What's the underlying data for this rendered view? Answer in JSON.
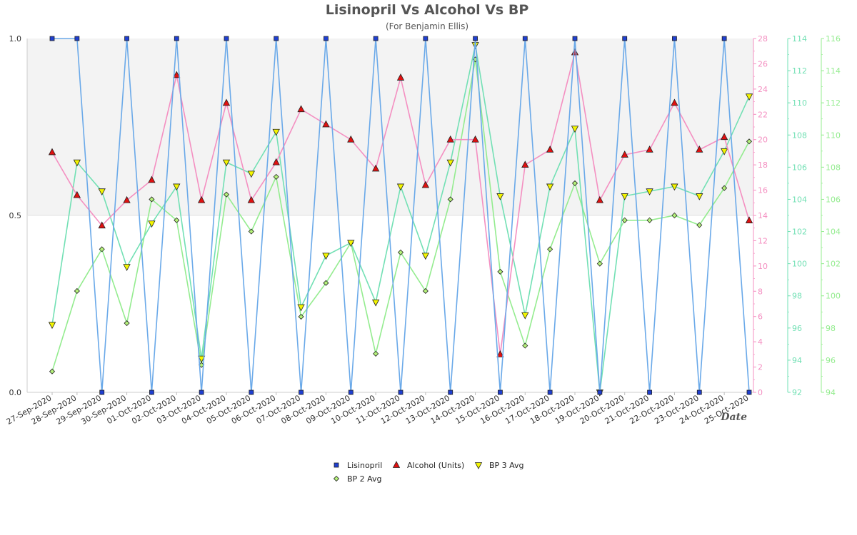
{
  "colors": {
    "lisinopril": "#6aa9e9",
    "alcohol": "#f48fc1",
    "bp3": "#72e0b4",
    "bp2": "#94ec8f",
    "plot_band": "#f3f3f3"
  },
  "chart_data": {
    "type": "line",
    "title": "Lisinopril Vs Alcohol Vs BP",
    "subtitle": "(For Benjamin Ellis)",
    "xlabel": "Date",
    "grid": false,
    "legend_position": "bottom-center",
    "categories": [
      "27-Sep-2020",
      "28-Sep-2020",
      "29-Sep-2020",
      "30-Sep-2020",
      "01-Oct-2020",
      "02-Oct-2020",
      "03-Oct-2020",
      "04-Oct-2020",
      "05-Oct-2020",
      "06-Oct-2020",
      "07-Oct-2020",
      "08-Oct-2020",
      "09-Oct-2020",
      "10-Oct-2020",
      "11-Oct-2020",
      "12-Oct-2020",
      "13-Oct-2020",
      "14-Oct-2020",
      "15-Oct-2020",
      "16-Oct-2020",
      "17-Oct-2020",
      "18-Oct-2020",
      "19-Oct-2020",
      "20-Oct-2020",
      "21-Oct-2020",
      "22-Oct-2020",
      "23-Oct-2020",
      "24-Oct-2020",
      "25-Oct-2020"
    ],
    "axes": {
      "left": {
        "ylim": [
          0,
          1
        ],
        "ticks": [
          "0.0",
          "0.5",
          "1.0"
        ]
      },
      "alcohol": {
        "ylim": [
          0,
          28
        ],
        "ticks": [
          "0",
          "2",
          "4",
          "6",
          "8",
          "10",
          "12",
          "14",
          "16",
          "18",
          "20",
          "22",
          "24",
          "26",
          "28"
        ]
      },
      "bp3": {
        "ylim": [
          92,
          114
        ],
        "ticks": [
          "92",
          "94",
          "96",
          "98",
          "100",
          "102",
          "104",
          "106",
          "108",
          "110",
          "112",
          "114"
        ]
      },
      "bp2": {
        "ylim": [
          94,
          116
        ],
        "ticks": [
          "94",
          "96",
          "98",
          "100",
          "102",
          "104",
          "106",
          "108",
          "110",
          "112",
          "114",
          "116"
        ]
      }
    },
    "series": [
      {
        "name": "Lisinopril",
        "axis": "left",
        "marker": "square",
        "values": [
          1,
          1,
          0,
          1,
          0,
          1,
          0,
          1,
          0,
          1,
          0,
          1,
          0,
          1,
          0,
          1,
          0,
          1,
          0,
          1,
          0,
          1,
          0,
          1,
          0,
          1,
          0,
          1,
          0
        ]
      },
      {
        "name": "Alcohol (Units)",
        "axis": "alcohol",
        "marker": "triangle-up",
        "values": [
          19,
          15.6,
          13.2,
          15.2,
          16.8,
          25.1,
          15.2,
          22.9,
          15.2,
          18.2,
          22.4,
          21.2,
          20,
          17.7,
          24.9,
          16.4,
          20,
          20,
          3,
          18,
          19.2,
          26.9,
          15.2,
          18.8,
          19.2,
          22.9,
          19.2,
          20.2,
          13.6
        ]
      },
      {
        "name": "BP 3 Avg",
        "axis": "bp3",
        "marker": "triangle-down",
        "values": [
          96.2,
          106.3,
          104.5,
          99.8,
          102.5,
          104.8,
          94.1,
          106.3,
          105.6,
          108.2,
          97.3,
          100.5,
          101.3,
          97.6,
          104.8,
          100.5,
          106.3,
          113.6,
          104.2,
          96.8,
          104.8,
          108.4,
          92,
          104.2,
          104.5,
          104.8,
          104.2,
          107,
          110.4
        ]
      },
      {
        "name": "BP 2 Avg",
        "axis": "bp2",
        "marker": "diamond",
        "values": [
          95.3,
          100.3,
          102.9,
          98.3,
          106,
          104.7,
          95.7,
          106.3,
          104,
          107.4,
          98.7,
          100.8,
          103.3,
          96.4,
          102.7,
          100.3,
          106,
          114.7,
          101.5,
          96.9,
          102.9,
          107,
          102,
          104.7,
          104.7,
          105,
          104.4,
          106.7,
          109.6
        ]
      }
    ]
  }
}
